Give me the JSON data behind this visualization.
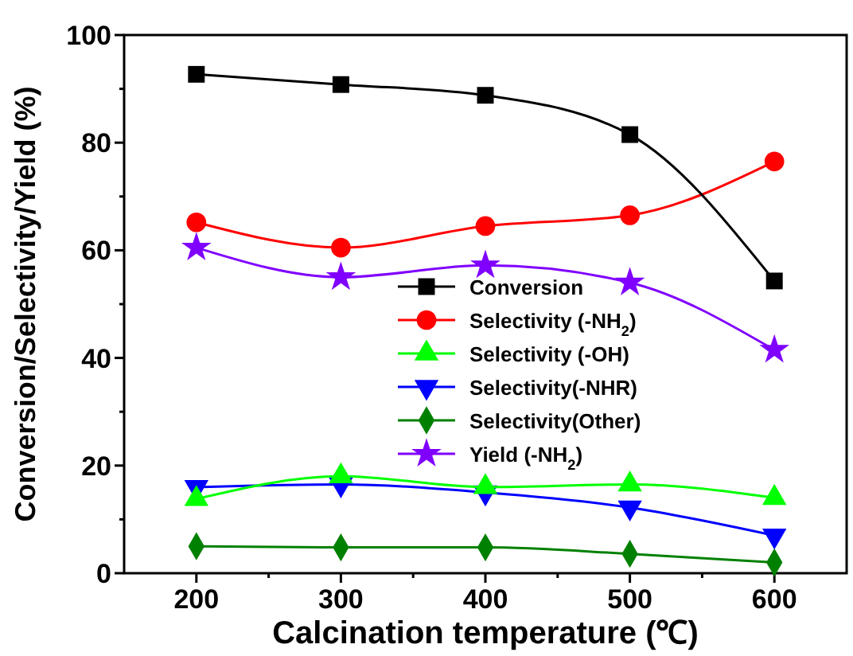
{
  "chart_data": {
    "type": "line",
    "xlabel": "Calcination temperature (℃)",
    "ylabel": "Conversion/Selectivity/Yield (%)",
    "x": [
      200,
      300,
      400,
      500,
      600
    ],
    "xlim": [
      150,
      650
    ],
    "xticks": [
      200,
      {
        "value": 250,
        "label": null
      },
      300,
      {
        "value": 350,
        "label": null
      },
      400,
      {
        "value": 450,
        "label": null
      },
      500,
      {
        "value": 550,
        "label": null
      },
      600
    ],
    "ylim": [
      0,
      100
    ],
    "yticks": [
      0,
      {
        "value": 10,
        "label": null
      },
      20,
      {
        "value": 30,
        "label": null
      },
      40,
      {
        "value": 50,
        "label": null
      },
      60,
      {
        "value": 70,
        "label": null
      },
      80,
      {
        "value": 90,
        "label": null
      },
      100
    ],
    "grid": false,
    "legend": "center",
    "line_style": "solid",
    "series": [
      {
        "name": "Conversion",
        "color": "#000000",
        "marker": "square",
        "values": [
          92.7,
          90.8,
          88.8,
          81.5,
          54.3
        ]
      },
      {
        "name": "Selectivity (-NH$_{2}$)",
        "color": "#ff0000",
        "marker": "circle",
        "values": [
          65.2,
          60.5,
          64.5,
          66.5,
          76.5
        ]
      },
      {
        "name": "Selectivity (-OH)",
        "color": "#00ff00",
        "marker": "triangle",
        "values": [
          13.8,
          18,
          16,
          16.5,
          14
        ]
      },
      {
        "name": "Selectivity(-NHR)",
        "color": "#0000ff",
        "marker": "triangle-down",
        "values": [
          16,
          16.5,
          15,
          12.2,
          7
        ]
      },
      {
        "name": "Selectivity(Other)",
        "color": "#008000",
        "marker": "diamond",
        "values": [
          5,
          4.8,
          4.8,
          3.6,
          2
        ]
      },
      {
        "name": "Yield (-NH$_{2}$)",
        "color": "#8000ff",
        "marker": "star",
        "values": [
          60.5,
          55,
          57.2,
          54,
          41.5
        ]
      }
    ]
  }
}
